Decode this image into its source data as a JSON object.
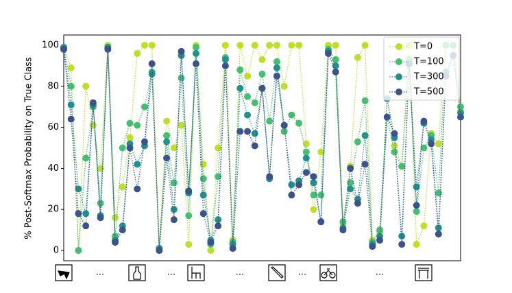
{
  "chart_data": {
    "type": "line",
    "ylabel": "% Post-Softmax Probability on True Class",
    "categories": [
      null,
      null,
      null,
      null,
      null,
      null,
      null,
      null,
      null,
      null,
      null,
      null,
      null,
      null,
      null,
      null,
      null,
      null,
      null,
      null,
      null,
      null,
      null,
      null,
      null,
      null,
      null,
      null,
      null,
      null,
      null,
      null,
      null,
      null,
      null,
      null,
      null,
      null,
      null,
      null,
      null,
      null,
      null,
      null,
      null,
      null,
      null,
      null,
      null,
      null,
      null,
      null,
      null,
      null,
      null
    ],
    "x_annotations": [
      "...",
      "...",
      "...",
      "...",
      "..."
    ],
    "ylim": [
      -5,
      105
    ],
    "yticks": [
      0,
      20,
      40,
      60,
      80,
      100
    ],
    "legend": "upper right",
    "series": [
      {
        "name": "T=0",
        "color": "#bddf26",
        "values": [
          99,
          89,
          0,
          80,
          61,
          40,
          100,
          16,
          31,
          55,
          96,
          100,
          100,
          1,
          63,
          50,
          61,
          3,
          100,
          42,
          0,
          50,
          100,
          5,
          100,
          85,
          100,
          93,
          100,
          100,
          80,
          100,
          100,
          52,
          20,
          48,
          100,
          100,
          13,
          41,
          94,
          100,
          5,
          9,
          74,
          51,
          41,
          100,
          3,
          12,
          57,
          52,
          100,
          100,
          68
        ]
      },
      {
        "name": "T=100",
        "color": "#44bf70",
        "values": [
          99,
          80,
          0,
          45,
          70,
          23,
          99,
          7,
          50,
          62,
          61,
          70,
          87,
          1,
          56,
          33,
          84,
          17,
          99,
          35,
          3,
          36,
          94,
          4,
          88,
          75,
          72,
          86,
          63,
          92,
          58,
          66,
          62,
          48,
          27,
          27,
          98,
          93,
          14,
          33,
          53,
          73,
          4,
          10,
          65,
          48,
          41,
          93,
          19,
          50,
          56,
          28,
          100,
          100,
          70
        ]
      },
      {
        "name": "T=300",
        "color": "#21918c",
        "values": [
          99,
          71,
          30,
          18,
          71,
          17,
          99,
          5,
          12,
          52,
          42,
          51,
          86,
          1,
          53,
          20,
          95,
          28,
          96,
          27,
          5,
          15,
          93,
          3,
          79,
          66,
          57,
          79,
          35,
          89,
          61,
          32,
          34,
          45,
          33,
          14,
          97,
          90,
          11,
          30,
          25,
          56,
          3,
          7,
          74,
          55,
          7,
          91,
          31,
          62,
          54,
          11,
          87,
          95,
          67
        ]
      },
      {
        "name": "T=500",
        "color": "#3b528b",
        "values": [
          98,
          64,
          18,
          12,
          72,
          16,
          98,
          4,
          10,
          50,
          30,
          53,
          91,
          0,
          45,
          15,
          97,
          29,
          91,
          18,
          4,
          12,
          90,
          1,
          58,
          58,
          51,
          79,
          36,
          85,
          61,
          27,
          32,
          38,
          36,
          14,
          96,
          87,
          10,
          40,
          23,
          42,
          2,
          5,
          65,
          57,
          3,
          91,
          22,
          63,
          52,
          8,
          85,
          95,
          65
        ]
      }
    ]
  }
}
